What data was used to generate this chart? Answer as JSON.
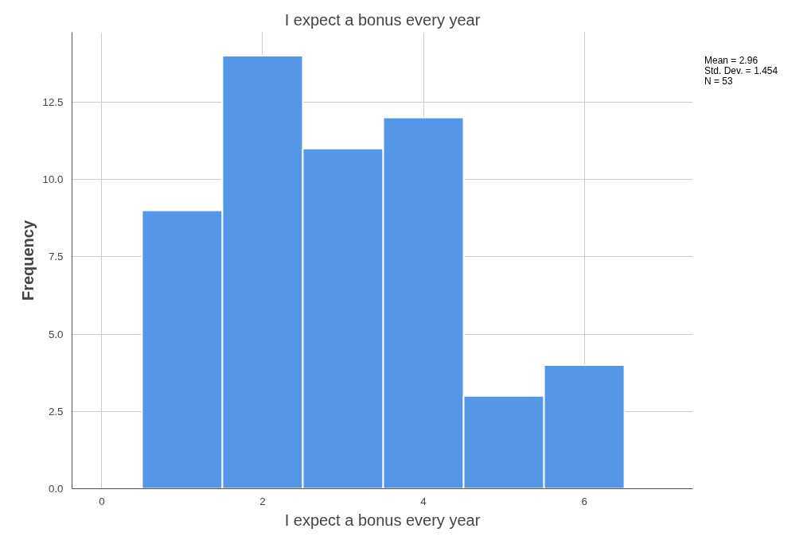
{
  "chart_data": {
    "type": "histogram",
    "title": "I expect a bonus every year",
    "xlabel": "I expect a bonus every year",
    "ylabel": "Frequency",
    "bins": [
      0.5,
      1.5,
      2.5,
      3.5,
      4.5,
      5.5,
      6.5
    ],
    "values": [
      9,
      14,
      11,
      12,
      3,
      4
    ],
    "color": "#5596e6",
    "xlim": [
      -0.37,
      7.35
    ],
    "ylim": [
      0,
      14.76
    ],
    "xticks": [
      0,
      2,
      4,
      6
    ],
    "yticks": [
      {
        "value": 0,
        "label": "0.0"
      },
      {
        "value": 2.5,
        "label": "2.5"
      },
      {
        "value": 5,
        "label": "5.0"
      },
      {
        "value": 7.5,
        "label": "7.5"
      },
      {
        "value": 10,
        "label": "10.0"
      },
      {
        "value": 12.5,
        "label": "12.5"
      }
    ],
    "grid": true,
    "annotations": [
      "Mean = 2.96",
      "Std. Dev. = 1.454",
      "N = 53"
    ]
  }
}
